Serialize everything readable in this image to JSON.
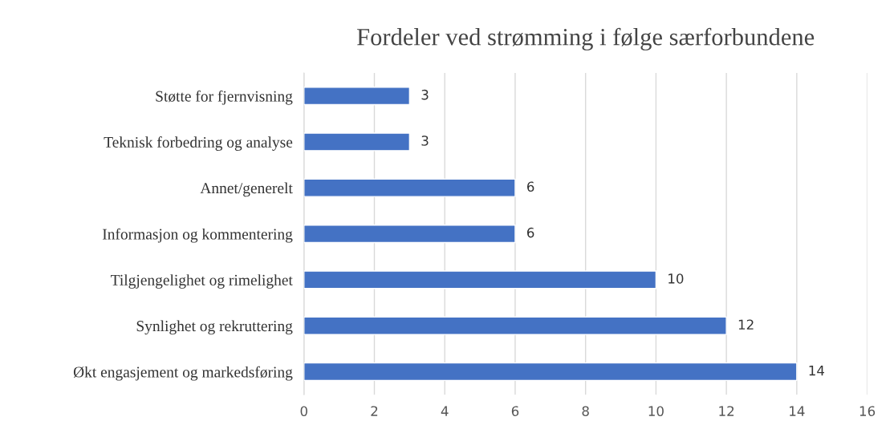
{
  "chart_data": {
    "type": "bar",
    "orientation": "horizontal",
    "title": "Fordeler ved strømming i følge særforbundene",
    "categories": [
      "Støtte for fjernvisning",
      "Teknisk forbedring og analyse",
      "Annet/generelt",
      "Informasjon og kommentering",
      "Tilgjengelighet og rimelighet",
      "Synlighet og rekruttering",
      "Økt engasjement og markedsføring"
    ],
    "values": [
      3,
      3,
      6,
      6,
      10,
      12,
      14
    ],
    "color": "#4472c4",
    "xlim": [
      0,
      16
    ],
    "xticks": [
      0,
      2,
      4,
      6,
      8,
      10,
      12,
      14,
      16
    ],
    "grid": "x",
    "data_labels": true
  }
}
